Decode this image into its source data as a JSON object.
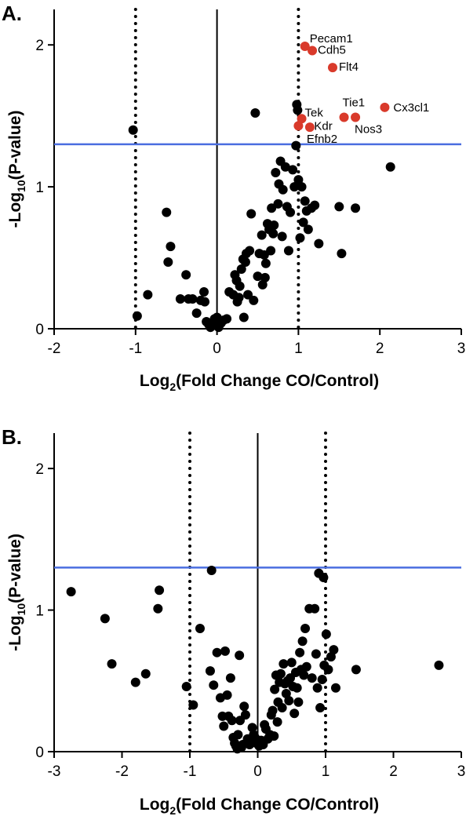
{
  "chart_data": [
    {
      "type": "scatter",
      "panel_label": "A.",
      "xlabel": "Log",
      "xlabel_sub": "2",
      "xlabel_rest": "(Fold Change CO/Control)",
      "ylabel": "-Log",
      "ylabel_sub": "10",
      "ylabel_rest": "(P-value)",
      "xlim": [
        -2,
        3
      ],
      "ylim": [
        0,
        2.25
      ],
      "xticks": [
        -2,
        -1,
        0,
        1,
        2,
        3
      ],
      "xtick_labels": [
        "-2",
        "-1",
        "0",
        "1",
        "2",
        "3"
      ],
      "yticks": [
        0,
        1,
        2
      ],
      "ytick_labels": [
        "0",
        "1",
        "2"
      ],
      "threshold_y": 1.3,
      "fold_lines_x": [
        -1,
        1
      ],
      "zero_line_x": 0,
      "colors": {
        "points": "#000000",
        "highlight": "#d93a2b",
        "threshold": "#4a6ee0"
      },
      "points": [
        [
          -1.03,
          1.4
        ],
        [
          -0.98,
          0.09
        ],
        [
          -0.85,
          0.24
        ],
        [
          -0.62,
          0.82
        ],
        [
          -0.6,
          0.47
        ],
        [
          -0.57,
          0.58
        ],
        [
          -0.45,
          0.21
        ],
        [
          -0.38,
          0.38
        ],
        [
          -0.35,
          0.21
        ],
        [
          -0.3,
          0.21
        ],
        [
          -0.25,
          0.11
        ],
        [
          -0.2,
          0.2
        ],
        [
          -0.16,
          0.26
        ],
        [
          -0.15,
          0.19
        ],
        [
          -0.13,
          0.05
        ],
        [
          -0.1,
          0.03
        ],
        [
          -0.08,
          0.01
        ],
        [
          -0.05,
          0.04
        ],
        [
          -0.03,
          0.07
        ],
        [
          0.0,
          0.08
        ],
        [
          0.02,
          0.01
        ],
        [
          0.05,
          0.04
        ],
        [
          0.08,
          0.06
        ],
        [
          0.12,
          0.07
        ],
        [
          0.15,
          0.26
        ],
        [
          0.2,
          0.24
        ],
        [
          0.22,
          0.38
        ],
        [
          0.24,
          0.34
        ],
        [
          0.25,
          0.19
        ],
        [
          0.27,
          0.22
        ],
        [
          0.28,
          0.3
        ],
        [
          0.3,
          0.42
        ],
        [
          0.32,
          0.49
        ],
        [
          0.33,
          0.08
        ],
        [
          0.35,
          0.47
        ],
        [
          0.36,
          0.53
        ],
        [
          0.38,
          0.24
        ],
        [
          0.4,
          0.55
        ],
        [
          0.42,
          0.81
        ],
        [
          0.45,
          0.2
        ],
        [
          0.47,
          1.52
        ],
        [
          0.5,
          0.37
        ],
        [
          0.52,
          0.53
        ],
        [
          0.55,
          0.66
        ],
        [
          0.56,
          0.31
        ],
        [
          0.58,
          0.52
        ],
        [
          0.59,
          0.36
        ],
        [
          0.6,
          0.46
        ],
        [
          0.62,
          0.74
        ],
        [
          0.64,
          0.7
        ],
        [
          0.66,
          0.55
        ],
        [
          0.67,
          0.85
        ],
        [
          0.69,
          0.67
        ],
        [
          0.7,
          0.73
        ],
        [
          0.72,
          1.1
        ],
        [
          0.75,
          0.88
        ],
        [
          0.76,
          1.02
        ],
        [
          0.78,
          1.18
        ],
        [
          0.8,
          0.65
        ],
        [
          0.81,
          0.98
        ],
        [
          0.84,
          1.14
        ],
        [
          0.86,
          0.86
        ],
        [
          0.88,
          0.55
        ],
        [
          0.9,
          0.82
        ],
        [
          0.93,
          1.12
        ],
        [
          0.95,
          1.0
        ],
        [
          0.97,
          1.29
        ],
        [
          0.98,
          1.58
        ],
        [
          0.99,
          1.54
        ],
        [
          1.0,
          1.05
        ],
        [
          1.02,
          0.64
        ],
        [
          1.04,
          1.0
        ],
        [
          1.06,
          0.75
        ],
        [
          1.08,
          0.9
        ],
        [
          1.1,
          0.83
        ],
        [
          1.12,
          0.7
        ],
        [
          1.16,
          0.85
        ],
        [
          1.2,
          0.87
        ],
        [
          1.25,
          0.6
        ],
        [
          1.5,
          0.86
        ],
        [
          1.53,
          0.53
        ],
        [
          1.7,
          0.85
        ],
        [
          2.13,
          1.14
        ]
      ],
      "highlights": [
        {
          "label": "Pecam1",
          "x": 1.08,
          "y": 1.99
        },
        {
          "label": "Cdh5",
          "x": 1.17,
          "y": 1.96
        },
        {
          "label": "Flt4",
          "x": 1.42,
          "y": 1.84
        },
        {
          "label": "Tek",
          "x": 1.04,
          "y": 1.48
        },
        {
          "label": "Kdr",
          "x": 1.0,
          "y": 1.43
        },
        {
          "label": "Efnb2",
          "x": 1.14,
          "y": 1.42
        },
        {
          "label": "Tie1",
          "x": 1.56,
          "y": 1.49
        },
        {
          "label": "Nos3",
          "x": 1.7,
          "y": 1.49
        },
        {
          "label": "Cx3cl1",
          "x": 2.06,
          "y": 1.56
        }
      ]
    },
    {
      "type": "scatter",
      "panel_label": "B.",
      "xlabel": "Log",
      "xlabel_sub": "2",
      "xlabel_rest": "(Fold Change CO/Control)",
      "ylabel": "-Log",
      "ylabel_sub": "10",
      "ylabel_rest": "(P-value)",
      "xlim": [
        -3,
        3
      ],
      "ylim": [
        0,
        2.25
      ],
      "xticks": [
        -3,
        -2,
        -1,
        0,
        1,
        2,
        3
      ],
      "xtick_labels": [
        "-3",
        "-2",
        "-1",
        "0",
        "1",
        "2",
        "3"
      ],
      "yticks": [
        0,
        1,
        2
      ],
      "ytick_labels": [
        "0",
        "1",
        "2"
      ],
      "threshold_y": 1.3,
      "fold_lines_x": [
        -1,
        1
      ],
      "zero_line_x": 0,
      "colors": {
        "points": "#000000",
        "threshold": "#4a6ee0"
      },
      "points": [
        [
          -2.75,
          1.13
        ],
        [
          -2.25,
          0.94
        ],
        [
          -2.15,
          0.62
        ],
        [
          -1.8,
          0.49
        ],
        [
          -1.65,
          0.55
        ],
        [
          -1.45,
          1.14
        ],
        [
          -1.47,
          1.01
        ],
        [
          -1.05,
          0.46
        ],
        [
          -0.95,
          0.33
        ],
        [
          -0.85,
          0.87
        ],
        [
          -0.68,
          1.28
        ],
        [
          -0.7,
          0.57
        ],
        [
          -0.65,
          0.47
        ],
        [
          -0.6,
          0.7
        ],
        [
          -0.55,
          0.38
        ],
        [
          -0.52,
          0.25
        ],
        [
          -0.5,
          0.18
        ],
        [
          -0.48,
          0.71
        ],
        [
          -0.45,
          0.4
        ],
        [
          -0.43,
          0.25
        ],
        [
          -0.4,
          0.52
        ],
        [
          -0.38,
          0.22
        ],
        [
          -0.36,
          0.1
        ],
        [
          -0.34,
          0.06
        ],
        [
          -0.32,
          0.04
        ],
        [
          -0.3,
          0.02
        ],
        [
          -0.29,
          0.12
        ],
        [
          -0.27,
          0.68
        ],
        [
          -0.26,
          0.22
        ],
        [
          -0.24,
          0.03
        ],
        [
          -0.22,
          0.05
        ],
        [
          -0.2,
          0.32
        ],
        [
          -0.18,
          0.26
        ],
        [
          -0.15,
          0.09
        ],
        [
          -0.12,
          0.05
        ],
        [
          -0.08,
          0.17
        ],
        [
          -0.06,
          0.12
        ],
        [
          -0.04,
          0.1
        ],
        [
          -0.02,
          0.06
        ],
        [
          0.02,
          0.04
        ],
        [
          0.05,
          0.08
        ],
        [
          0.08,
          0.05
        ],
        [
          0.1,
          0.19
        ],
        [
          0.12,
          0.16
        ],
        [
          0.15,
          0.09
        ],
        [
          0.18,
          0.12
        ],
        [
          0.2,
          0.26
        ],
        [
          0.22,
          0.29
        ],
        [
          0.24,
          0.11
        ],
        [
          0.25,
          0.44
        ],
        [
          0.27,
          0.54
        ],
        [
          0.29,
          0.21
        ],
        [
          0.3,
          0.35
        ],
        [
          0.32,
          0.49
        ],
        [
          0.34,
          0.55
        ],
        [
          0.36,
          0.31
        ],
        [
          0.38,
          0.62
        ],
        [
          0.4,
          0.48
        ],
        [
          0.42,
          0.41
        ],
        [
          0.44,
          0.5
        ],
        [
          0.46,
          0.36
        ],
        [
          0.48,
          0.52
        ],
        [
          0.5,
          0.63
        ],
        [
          0.52,
          0.46
        ],
        [
          0.54,
          0.27
        ],
        [
          0.56,
          0.56
        ],
        [
          0.58,
          0.45
        ],
        [
          0.6,
          0.35
        ],
        [
          0.62,
          0.7
        ],
        [
          0.64,
          0.58
        ],
        [
          0.66,
          0.78
        ],
        [
          0.68,
          0.54
        ],
        [
          0.7,
          0.87
        ],
        [
          0.72,
          0.6
        ],
        [
          0.76,
          1.01
        ],
        [
          0.8,
          0.52
        ],
        [
          0.84,
          1.01
        ],
        [
          0.86,
          0.69
        ],
        [
          0.88,
          0.45
        ],
        [
          0.9,
          1.26
        ],
        [
          0.92,
          0.31
        ],
        [
          0.95,
          0.51
        ],
        [
          0.97,
          1.23
        ],
        [
          0.98,
          0.61
        ],
        [
          1.01,
          0.83
        ],
        [
          1.04,
          0.58
        ],
        [
          1.08,
          0.67
        ],
        [
          1.12,
          0.72
        ],
        [
          1.15,
          0.45
        ],
        [
          1.45,
          0.58
        ],
        [
          2.67,
          0.61
        ]
      ]
    }
  ]
}
